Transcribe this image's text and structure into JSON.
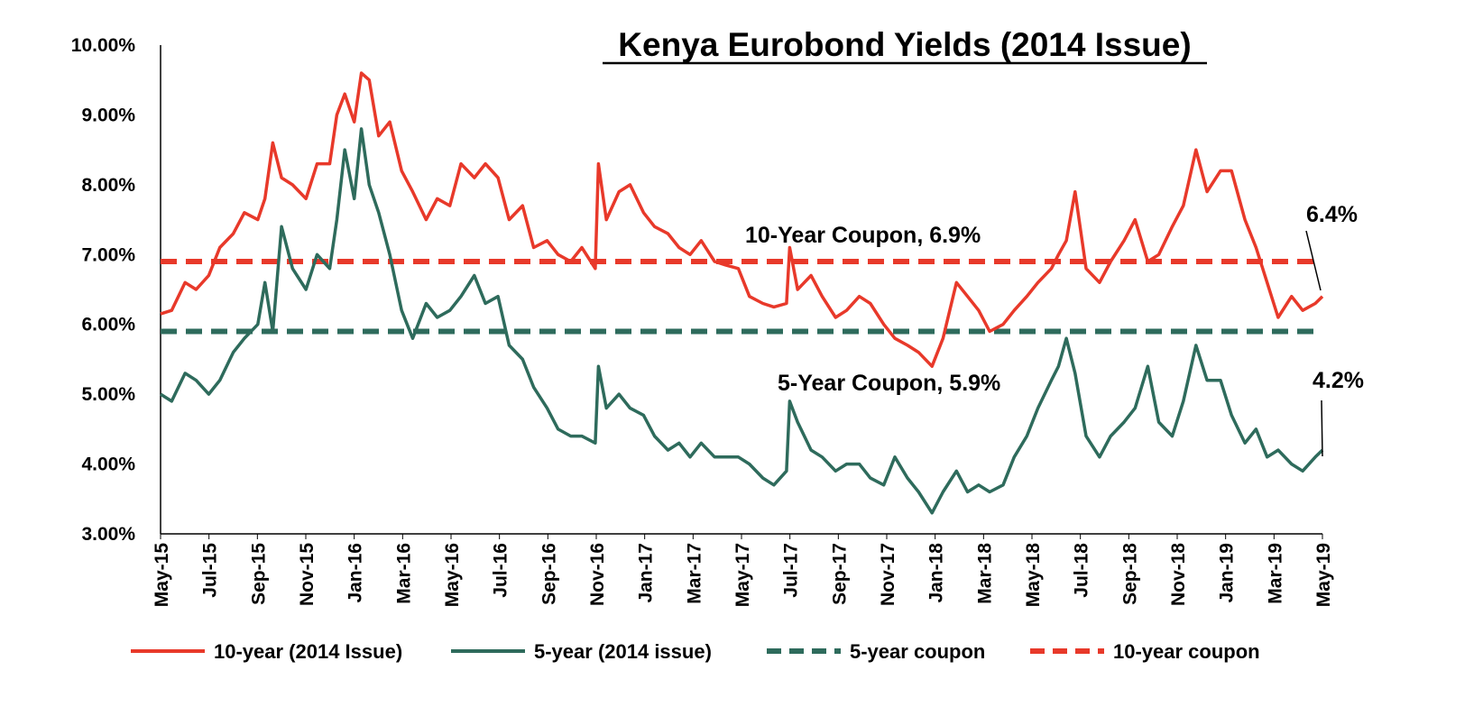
{
  "chart_data": {
    "type": "line",
    "title": "Kenya Eurobond Yields (2014 Issue)",
    "xlabel": "",
    "ylabel": "",
    "ylim": [
      0.03,
      0.1
    ],
    "y_ticks": [
      "10.00%",
      "9.00%",
      "8.00%",
      "7.00%",
      "6.00%",
      "5.00%",
      "4.00%",
      "3.00%"
    ],
    "x_ticks": [
      "May-15",
      "Jul-15",
      "Sep-15",
      "Nov-15",
      "Jan-16",
      "Mar-16",
      "May-16",
      "Jul-16",
      "Sep-16",
      "Nov-16",
      "Jan-17",
      "Mar-17",
      "May-17",
      "Jul-17",
      "Sep-17",
      "Nov-17",
      "Jan-18",
      "Mar-18",
      "May-18",
      "Jul-18",
      "Sep-18",
      "Nov-18",
      "Jan-19",
      "Mar-19",
      "May-19"
    ],
    "grid": false,
    "legend_position": "bottom",
    "series": [
      {
        "name": "10-year (2014 Issue)",
        "color": "#e8392a",
        "style": "solid",
        "x": [
          "2015-05-01",
          "2015-05-15",
          "2015-06-01",
          "2015-06-15",
          "2015-07-01",
          "2015-07-15",
          "2015-08-01",
          "2015-08-15",
          "2015-09-01",
          "2015-09-10",
          "2015-09-20",
          "2015-10-01",
          "2015-10-15",
          "2015-11-01",
          "2015-11-15",
          "2015-12-01",
          "2015-12-10",
          "2015-12-20",
          "2016-01-01",
          "2016-01-10",
          "2016-01-20",
          "2016-02-01",
          "2016-02-15",
          "2016-03-01",
          "2016-03-15",
          "2016-04-01",
          "2016-04-15",
          "2016-05-01",
          "2016-05-15",
          "2016-06-01",
          "2016-06-15",
          "2016-07-01",
          "2016-07-15",
          "2016-08-01",
          "2016-08-15",
          "2016-09-01",
          "2016-09-15",
          "2016-10-01",
          "2016-10-15",
          "2016-11-01",
          "2016-11-05",
          "2016-11-15",
          "2016-12-01",
          "2016-12-15",
          "2017-01-01",
          "2017-01-15",
          "2017-02-01",
          "2017-02-15",
          "2017-03-01",
          "2017-03-15",
          "2017-04-01",
          "2017-04-15",
          "2017-05-01",
          "2017-05-15",
          "2017-06-01",
          "2017-06-15",
          "2017-07-01",
          "2017-07-05",
          "2017-07-15",
          "2017-08-01",
          "2017-08-15",
          "2017-09-01",
          "2017-09-15",
          "2017-10-01",
          "2017-10-15",
          "2017-11-01",
          "2017-11-15",
          "2017-12-01",
          "2017-12-15",
          "2018-01-01",
          "2018-01-15",
          "2018-02-01",
          "2018-02-15",
          "2018-03-01",
          "2018-03-15",
          "2018-04-01",
          "2018-04-15",
          "2018-05-01",
          "2018-05-15",
          "2018-06-01",
          "2018-06-10",
          "2018-06-20",
          "2018-07-01",
          "2018-07-15",
          "2018-08-01",
          "2018-08-15",
          "2018-09-01",
          "2018-09-15",
          "2018-10-01",
          "2018-10-15",
          "2018-11-01",
          "2018-11-15",
          "2018-12-01",
          "2018-12-15",
          "2019-01-01",
          "2019-01-15",
          "2019-02-01",
          "2019-02-15",
          "2019-03-01",
          "2019-03-15",
          "2019-04-01",
          "2019-04-15",
          "2019-05-01",
          "2019-05-10"
        ],
        "values": [
          0.0615,
          0.062,
          0.066,
          0.065,
          0.067,
          0.071,
          0.073,
          0.076,
          0.075,
          0.078,
          0.086,
          0.081,
          0.08,
          0.078,
          0.083,
          0.083,
          0.09,
          0.093,
          0.089,
          0.096,
          0.095,
          0.087,
          0.089,
          0.082,
          0.079,
          0.075,
          0.078,
          0.077,
          0.083,
          0.081,
          0.083,
          0.081,
          0.075,
          0.077,
          0.071,
          0.072,
          0.07,
          0.069,
          0.071,
          0.068,
          0.083,
          0.075,
          0.079,
          0.08,
          0.076,
          0.074,
          0.073,
          0.071,
          0.07,
          0.072,
          0.069,
          0.0685,
          0.068,
          0.064,
          0.063,
          0.0625,
          0.063,
          0.071,
          0.065,
          0.067,
          0.064,
          0.061,
          0.062,
          0.064,
          0.063,
          0.06,
          0.058,
          0.057,
          0.056,
          0.054,
          0.058,
          0.066,
          0.064,
          0.062,
          0.059,
          0.06,
          0.062,
          0.064,
          0.066,
          0.068,
          0.07,
          0.072,
          0.079,
          0.068,
          0.066,
          0.069,
          0.072,
          0.075,
          0.069,
          0.07,
          0.074,
          0.077,
          0.085,
          0.079,
          0.082,
          0.082,
          0.075,
          0.071,
          0.066,
          0.061,
          0.064,
          0.062,
          0.063,
          0.064
        ]
      },
      {
        "name": "5-year (2014 issue)",
        "color": "#2e6b5c",
        "style": "solid",
        "x": [
          "2015-05-01",
          "2015-05-15",
          "2015-06-01",
          "2015-06-15",
          "2015-07-01",
          "2015-07-15",
          "2015-08-01",
          "2015-08-15",
          "2015-09-01",
          "2015-09-10",
          "2015-09-20",
          "2015-10-01",
          "2015-10-15",
          "2015-11-01",
          "2015-11-15",
          "2015-12-01",
          "2015-12-10",
          "2015-12-20",
          "2016-01-01",
          "2016-01-10",
          "2016-01-20",
          "2016-02-01",
          "2016-02-15",
          "2016-03-01",
          "2016-03-15",
          "2016-04-01",
          "2016-04-15",
          "2016-05-01",
          "2016-05-15",
          "2016-06-01",
          "2016-06-15",
          "2016-07-01",
          "2016-07-15",
          "2016-08-01",
          "2016-08-15",
          "2016-09-01",
          "2016-09-15",
          "2016-10-01",
          "2016-10-15",
          "2016-11-01",
          "2016-11-05",
          "2016-11-15",
          "2016-12-01",
          "2016-12-15",
          "2017-01-01",
          "2017-01-15",
          "2017-02-01",
          "2017-02-15",
          "2017-03-01",
          "2017-03-15",
          "2017-04-01",
          "2017-04-15",
          "2017-05-01",
          "2017-05-15",
          "2017-06-01",
          "2017-06-15",
          "2017-07-01",
          "2017-07-05",
          "2017-07-15",
          "2017-08-01",
          "2017-08-15",
          "2017-09-01",
          "2017-09-15",
          "2017-10-01",
          "2017-10-15",
          "2017-11-01",
          "2017-11-15",
          "2017-12-01",
          "2017-12-15",
          "2018-01-01",
          "2018-01-15",
          "2018-02-01",
          "2018-02-15",
          "2018-03-01",
          "2018-03-15",
          "2018-04-01",
          "2018-04-15",
          "2018-05-01",
          "2018-05-15",
          "2018-06-01",
          "2018-06-10",
          "2018-06-20",
          "2018-07-01",
          "2018-07-15",
          "2018-08-01",
          "2018-08-15",
          "2018-09-01",
          "2018-09-15",
          "2018-10-01",
          "2018-10-15",
          "2018-11-01",
          "2018-11-15",
          "2018-12-01",
          "2018-12-15",
          "2019-01-01",
          "2019-01-15",
          "2019-02-01",
          "2019-02-15",
          "2019-03-01",
          "2019-03-15",
          "2019-04-01",
          "2019-04-15",
          "2019-05-01",
          "2019-05-10"
        ],
        "values": [
          0.05,
          0.049,
          0.053,
          0.052,
          0.05,
          0.052,
          0.056,
          0.058,
          0.06,
          0.066,
          0.059,
          0.074,
          0.068,
          0.065,
          0.07,
          0.068,
          0.075,
          0.085,
          0.078,
          0.088,
          0.08,
          0.076,
          0.07,
          0.062,
          0.058,
          0.063,
          0.061,
          0.062,
          0.064,
          0.067,
          0.063,
          0.064,
          0.057,
          0.055,
          0.051,
          0.048,
          0.045,
          0.044,
          0.044,
          0.043,
          0.054,
          0.048,
          0.05,
          0.048,
          0.047,
          0.044,
          0.042,
          0.043,
          0.041,
          0.043,
          0.041,
          0.041,
          0.041,
          0.04,
          0.038,
          0.037,
          0.039,
          0.049,
          0.046,
          0.042,
          0.041,
          0.039,
          0.04,
          0.04,
          0.038,
          0.037,
          0.041,
          0.038,
          0.036,
          0.033,
          0.036,
          0.039,
          0.036,
          0.037,
          0.036,
          0.037,
          0.041,
          0.044,
          0.048,
          0.052,
          0.054,
          0.058,
          0.053,
          0.044,
          0.041,
          0.044,
          0.046,
          0.048,
          0.054,
          0.046,
          0.044,
          0.049,
          0.057,
          0.052,
          0.052,
          0.047,
          0.043,
          0.045,
          0.041,
          0.042,
          0.04,
          0.039,
          0.041,
          0.042
        ]
      },
      {
        "name": "5-year coupon",
        "color": "#2e6b5c",
        "style": "dashed",
        "value": 0.059
      },
      {
        "name": "10-year coupon",
        "color": "#e8392a",
        "style": "dashed",
        "value": 0.069
      }
    ],
    "annotations": [
      {
        "text": "10-Year Coupon, 6.9%"
      },
      {
        "text": "5-Year Coupon, 5.9%"
      },
      {
        "text": "6.4%"
      },
      {
        "text": "4.2%"
      }
    ]
  }
}
